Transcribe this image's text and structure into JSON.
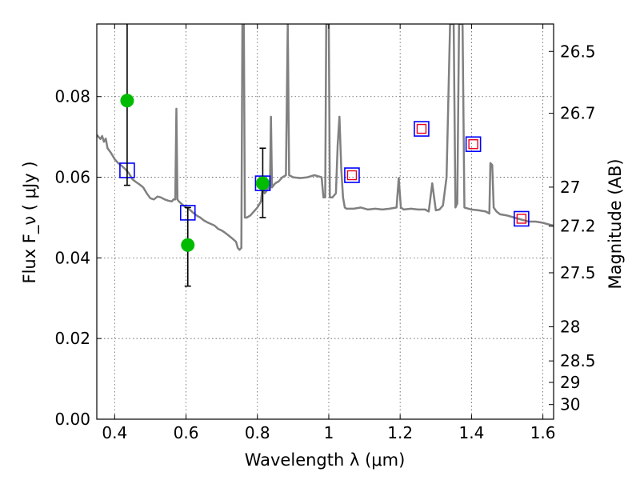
{
  "chart_data": {
    "type": "scatter",
    "title": "",
    "xlabel": "Wavelength  λ (μm)",
    "ylabel": "Flux  F_ν  ( μJy )",
    "y2label": "Magnitude (AB)",
    "xlim": [
      0.35,
      1.63
    ],
    "ylim": [
      0.0,
      0.098
    ],
    "grid": true,
    "x_ticks": [
      {
        "value": 0.4,
        "label": "0.4"
      },
      {
        "value": 0.6,
        "label": "0.6"
      },
      {
        "value": 0.8,
        "label": "0.8"
      },
      {
        "value": 1.0,
        "label": "1"
      },
      {
        "value": 1.2,
        "label": "1.2"
      },
      {
        "value": 1.4,
        "label": "1.4"
      },
      {
        "value": 1.6,
        "label": "1.6"
      }
    ],
    "y_ticks": [
      {
        "value": 0.0,
        "label": "0.00"
      },
      {
        "value": 0.02,
        "label": "0.02"
      },
      {
        "value": 0.04,
        "label": "0.04"
      },
      {
        "value": 0.06,
        "label": "0.06"
      },
      {
        "value": 0.08,
        "label": "0.08"
      }
    ],
    "mag_ticks": [
      {
        "value": 26.5,
        "label": "26.5"
      },
      {
        "value": 26.7,
        "label": "26.7"
      },
      {
        "value": 27.0,
        "label": "27"
      },
      {
        "value": 27.2,
        "label": "27.2"
      },
      {
        "value": 27.5,
        "label": "27.5"
      },
      {
        "value": 28.0,
        "label": "28"
      },
      {
        "value": 28.5,
        "label": "28.5"
      },
      {
        "value": 29.0,
        "label": "29"
      },
      {
        "value": 30.0,
        "label": "30"
      }
    ],
    "series": [
      {
        "kind": "line",
        "color": "#808080",
        "points": [
          [
            0.35,
            0.0705
          ],
          [
            0.36,
            0.0695
          ],
          [
            0.365,
            0.0702
          ],
          [
            0.37,
            0.0688
          ],
          [
            0.375,
            0.0696
          ],
          [
            0.38,
            0.0672
          ],
          [
            0.39,
            0.066
          ],
          [
            0.4,
            0.0645
          ],
          [
            0.41,
            0.0635
          ],
          [
            0.42,
            0.0628
          ],
          [
            0.43,
            0.062
          ],
          [
            0.44,
            0.061
          ],
          [
            0.45,
            0.0595
          ],
          [
            0.46,
            0.0588
          ],
          [
            0.47,
            0.0582
          ],
          [
            0.48,
            0.0575
          ],
          [
            0.49,
            0.056
          ],
          [
            0.5,
            0.0548
          ],
          [
            0.51,
            0.0545
          ],
          [
            0.52,
            0.0552
          ],
          [
            0.53,
            0.055
          ],
          [
            0.54,
            0.0545
          ],
          [
            0.55,
            0.0542
          ],
          [
            0.56,
            0.054
          ],
          [
            0.565,
            0.0545
          ],
          [
            0.57,
            0.0545
          ],
          [
            0.573,
            0.077
          ],
          [
            0.576,
            0.0545
          ],
          [
            0.58,
            0.054
          ],
          [
            0.59,
            0.0532
          ],
          [
            0.6,
            0.0525
          ],
          [
            0.61,
            0.052
          ],
          [
            0.62,
            0.0512
          ],
          [
            0.63,
            0.0505
          ],
          [
            0.64,
            0.05
          ],
          [
            0.65,
            0.0493
          ],
          [
            0.66,
            0.0488
          ],
          [
            0.67,
            0.0484
          ],
          [
            0.68,
            0.048
          ],
          [
            0.69,
            0.0472
          ],
          [
            0.7,
            0.0468
          ],
          [
            0.71,
            0.0462
          ],
          [
            0.72,
            0.0455
          ],
          [
            0.73,
            0.0448
          ],
          [
            0.74,
            0.044
          ],
          [
            0.745,
            0.0425
          ],
          [
            0.75,
            0.042
          ],
          [
            0.755,
            0.0425
          ],
          [
            0.758,
            0.098
          ],
          [
            0.762,
            0.098
          ],
          [
            0.765,
            0.05
          ],
          [
            0.77,
            0.05
          ],
          [
            0.78,
            0.0505
          ],
          [
            0.79,
            0.0515
          ],
          [
            0.8,
            0.0525
          ],
          [
            0.81,
            0.054
          ],
          [
            0.815,
            0.058
          ],
          [
            0.82,
            0.056
          ],
          [
            0.825,
            0.0565
          ],
          [
            0.83,
            0.0575
          ],
          [
            0.835,
            0.057
          ],
          [
            0.838,
            0.075
          ],
          [
            0.841,
            0.0575
          ],
          [
            0.85,
            0.0585
          ],
          [
            0.86,
            0.059
          ],
          [
            0.87,
            0.06
          ],
          [
            0.88,
            0.0605
          ],
          [
            0.885,
            0.098
          ],
          [
            0.889,
            0.0605
          ],
          [
            0.9,
            0.06
          ],
          [
            0.92,
            0.0598
          ],
          [
            0.94,
            0.06
          ],
          [
            0.96,
            0.0605
          ],
          [
            0.98,
            0.06
          ],
          [
            0.985,
            0.055
          ],
          [
            0.99,
            0.055
          ],
          [
            0.993,
            0.098
          ],
          [
            1.0,
            0.098
          ],
          [
            1.003,
            0.055
          ],
          [
            1.01,
            0.055
          ],
          [
            1.02,
            0.056
          ],
          [
            1.025,
            0.068
          ],
          [
            1.03,
            0.075
          ],
          [
            1.035,
            0.062
          ],
          [
            1.04,
            0.055
          ],
          [
            1.045,
            0.0525
          ],
          [
            1.05,
            0.0522
          ],
          [
            1.07,
            0.0522
          ],
          [
            1.09,
            0.0525
          ],
          [
            1.11,
            0.052
          ],
          [
            1.13,
            0.0522
          ],
          [
            1.15,
            0.052
          ],
          [
            1.17,
            0.0522
          ],
          [
            1.19,
            0.0525
          ],
          [
            1.196,
            0.0598
          ],
          [
            1.202,
            0.0525
          ],
          [
            1.21,
            0.052
          ],
          [
            1.23,
            0.0522
          ],
          [
            1.25,
            0.052
          ],
          [
            1.27,
            0.052
          ],
          [
            1.28,
            0.0515
          ],
          [
            1.29,
            0.0585
          ],
          [
            1.3,
            0.0518
          ],
          [
            1.31,
            0.052
          ],
          [
            1.32,
            0.053
          ],
          [
            1.33,
            0.06
          ],
          [
            1.34,
            0.098
          ],
          [
            1.35,
            0.098
          ],
          [
            1.355,
            0.0525
          ],
          [
            1.36,
            0.0535
          ],
          [
            1.365,
            0.098
          ],
          [
            1.375,
            0.098
          ],
          [
            1.38,
            0.0525
          ],
          [
            1.4,
            0.052
          ],
          [
            1.42,
            0.0518
          ],
          [
            1.44,
            0.0515
          ],
          [
            1.45,
            0.051
          ],
          [
            1.453,
            0.0635
          ],
          [
            1.458,
            0.063
          ],
          [
            1.462,
            0.0525
          ],
          [
            1.47,
            0.0515
          ],
          [
            1.48,
            0.0508
          ],
          [
            1.5,
            0.0505
          ],
          [
            1.52,
            0.05
          ],
          [
            1.54,
            0.0495
          ],
          [
            1.56,
            0.049
          ],
          [
            1.58,
            0.049
          ],
          [
            1.6,
            0.0487
          ],
          [
            1.62,
            0.0482
          ],
          [
            1.63,
            0.048
          ]
        ]
      },
      {
        "kind": "model_boxes",
        "color": "#0000ff",
        "points": [
          [
            0.435,
            0.0617
          ],
          [
            0.605,
            0.0512
          ],
          [
            0.815,
            0.0585
          ],
          [
            1.065,
            0.0605
          ],
          [
            1.26,
            0.072
          ],
          [
            1.405,
            0.0682
          ],
          [
            1.54,
            0.0497
          ]
        ]
      },
      {
        "kind": "observed",
        "color": "#e8001c",
        "points": [
          [
            1.065,
            0.0605
          ],
          [
            1.26,
            0.072
          ],
          [
            1.405,
            0.0682
          ],
          [
            1.54,
            0.0497
          ]
        ]
      },
      {
        "kind": "detections",
        "color": "#00bb00",
        "points": [
          {
            "x": 0.435,
            "y": 0.079,
            "lo": 0.058,
            "hi": 0.098
          },
          {
            "x": 0.605,
            "y": 0.0432,
            "lo": 0.033,
            "hi": 0.0525
          },
          {
            "x": 0.815,
            "y": 0.0585,
            "lo": 0.05,
            "hi": 0.0672
          }
        ]
      }
    ]
  }
}
